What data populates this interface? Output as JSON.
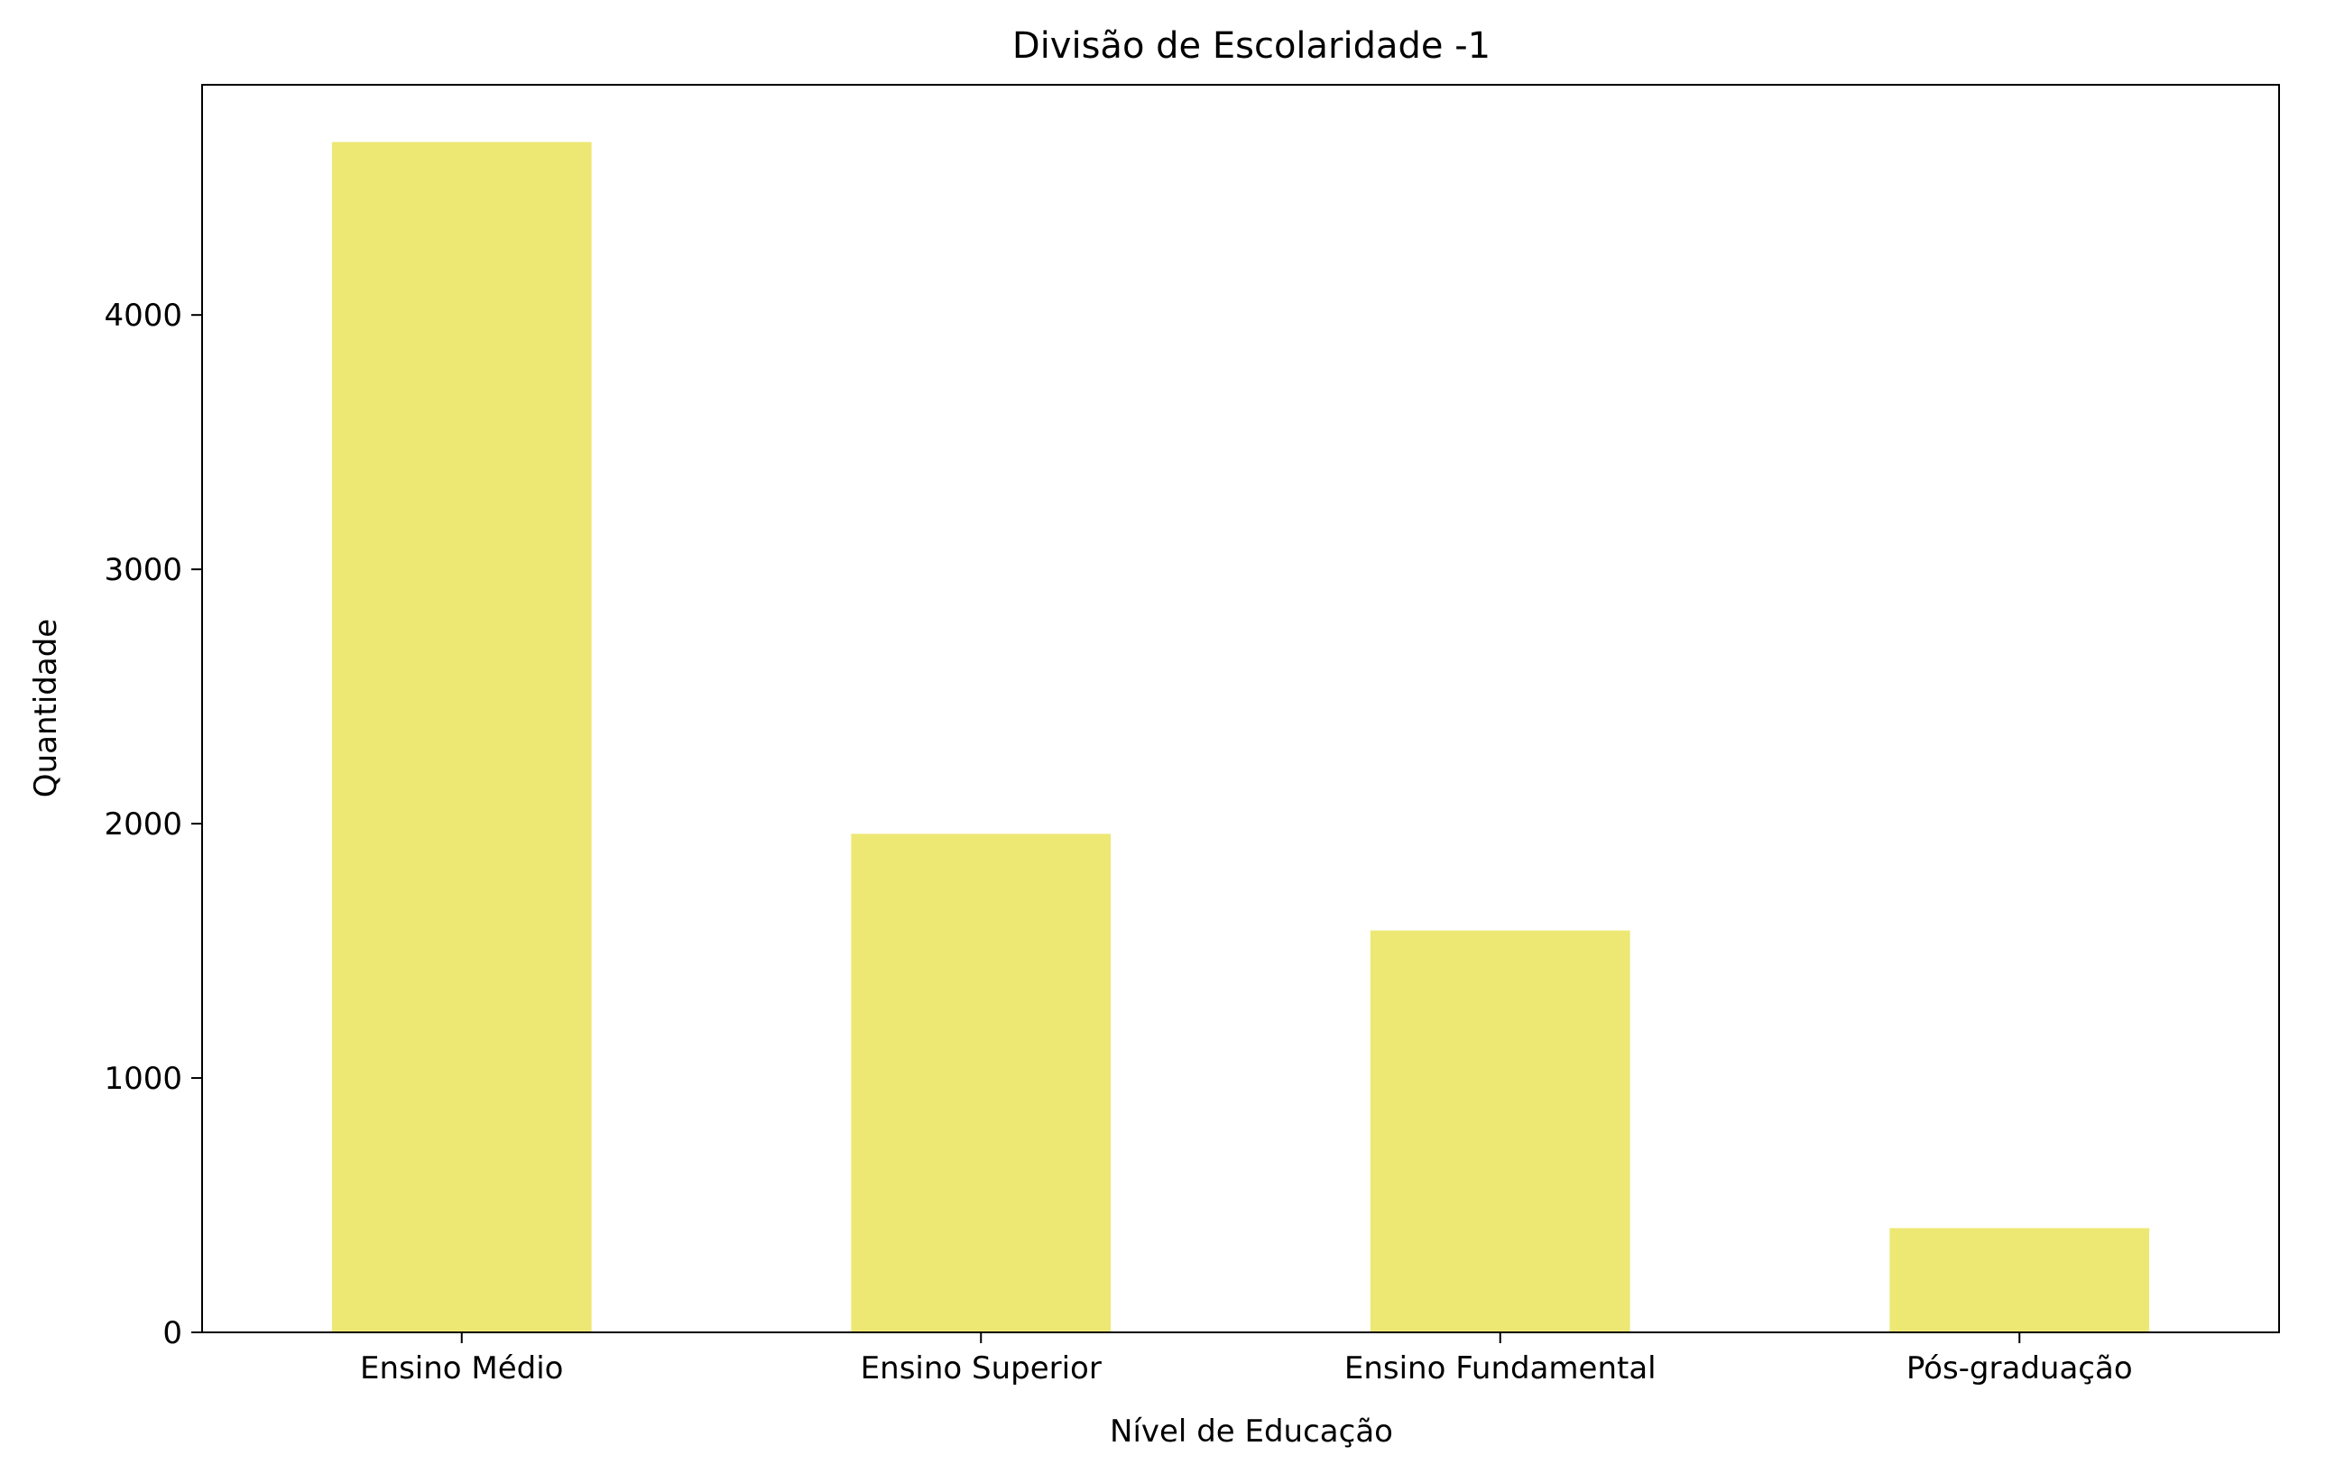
{
  "chart_data": {
    "type": "bar",
    "title": "Divisão de Escolaridade -1",
    "xlabel": "Nível de Educação",
    "ylabel": "Quantidade",
    "categories": [
      "Ensino Médio",
      "Ensino Superior",
      "Ensino Fundamental",
      "Pós-graduação"
    ],
    "values": [
      4680,
      1960,
      1580,
      410
    ],
    "ylim": [
      0,
      4905
    ],
    "yticks": [
      0,
      1000,
      2000,
      3000,
      4000
    ],
    "ytick_labels": [
      "0",
      "1000",
      "2000",
      "3000",
      "4000"
    ],
    "grid": false,
    "legend": "none",
    "bar_color": "#ede874"
  }
}
